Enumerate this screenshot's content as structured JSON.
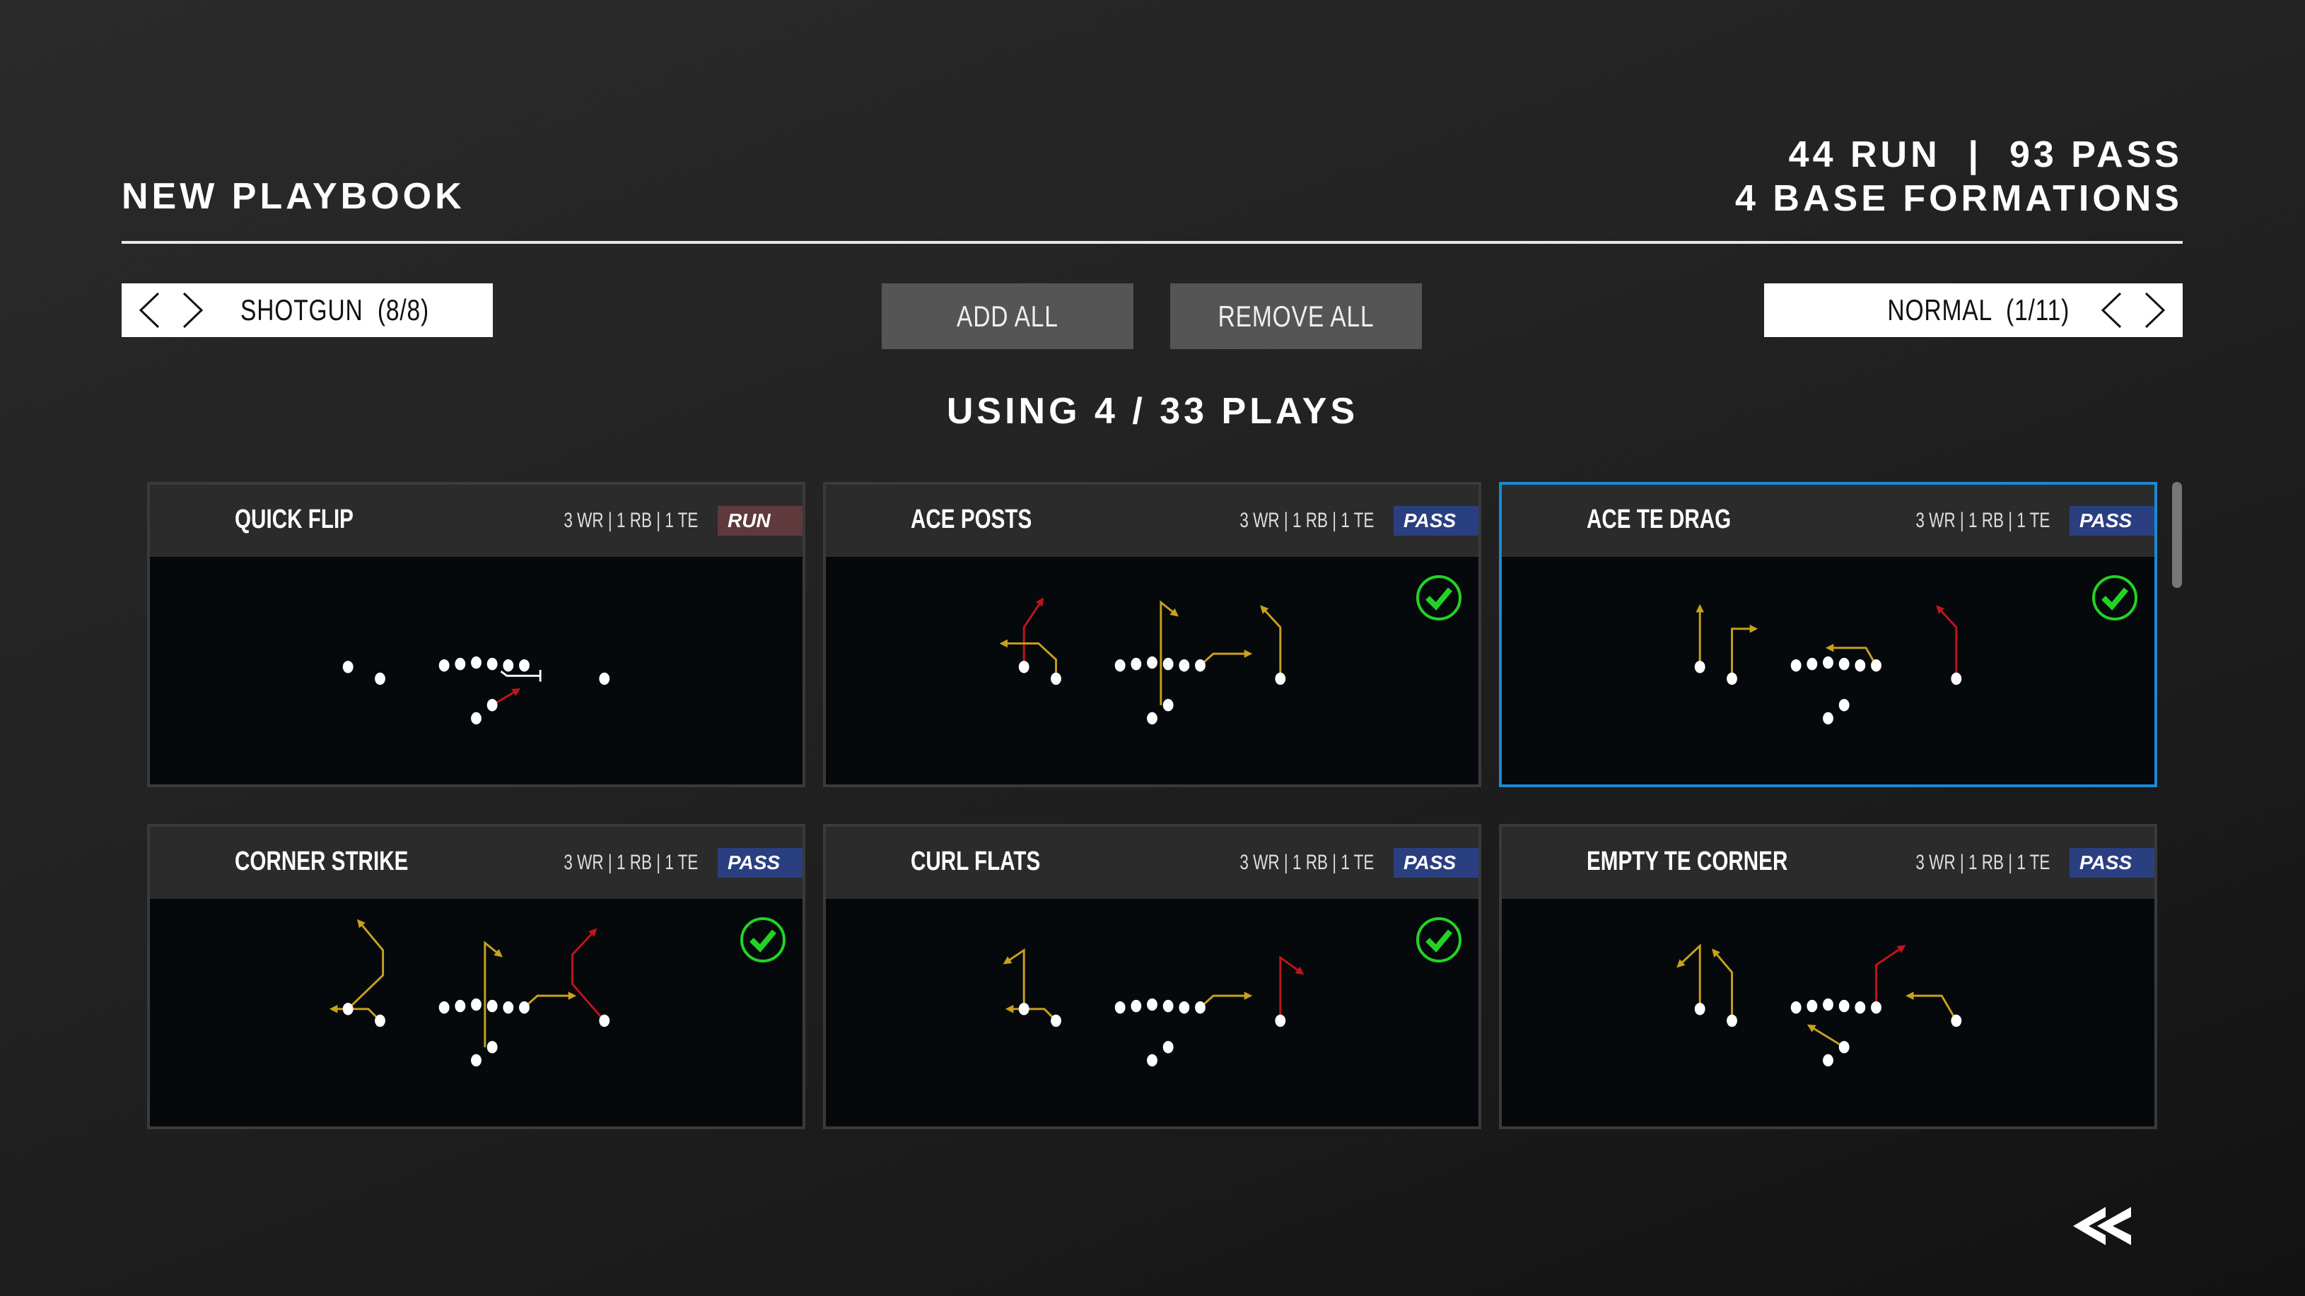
{
  "header": {
    "title": "NEW PLAYBOOK",
    "stats_line1": "44 RUN  |  93 PASS",
    "stats_line2": "4 BASE FORMATIONS"
  },
  "formation_selector": {
    "label": "SHOTGUN  (8/8)",
    "prev_icon": "chevron-left-icon",
    "next_icon": "chevron-right-icon"
  },
  "actions": {
    "add_all": "ADD ALL",
    "remove_all": "REMOVE ALL"
  },
  "sub_selector": {
    "label": "NORMAL  (1/11)"
  },
  "usage": "USING 4 / 33 PLAYS",
  "colors": {
    "run_badge": "#5e3a3c",
    "pass_badge": "#2a3f80",
    "selected_border": "#1a8ad0",
    "route_yellow": "#c9a21c",
    "route_red": "#c0151a",
    "check_green": "#22d323"
  },
  "plays": [
    {
      "name": "QUICK FLIP",
      "personnel": "3 WR | 1 RB | 1 TE",
      "type": "RUN",
      "added": false,
      "selected": false
    },
    {
      "name": "ACE POSTS",
      "personnel": "3 WR | 1 RB | 1 TE",
      "type": "PASS",
      "added": true,
      "selected": false
    },
    {
      "name": "ACE TE DRAG",
      "personnel": "3 WR | 1 RB | 1 TE",
      "type": "PASS",
      "added": true,
      "selected": true
    },
    {
      "name": "CORNER STRIKE",
      "personnel": "3 WR | 1 RB | 1 TE",
      "type": "PASS",
      "added": true,
      "selected": false
    },
    {
      "name": "CURL FLATS",
      "personnel": "3 WR | 1 RB | 1 TE",
      "type": "PASS",
      "added": true,
      "selected": false
    },
    {
      "name": "EMPTY TE CORNER",
      "personnel": "3 WR | 1 RB | 1 TE",
      "type": "PASS",
      "added": false,
      "selected": false
    }
  ],
  "back_icon": "double-chevron-left-icon"
}
